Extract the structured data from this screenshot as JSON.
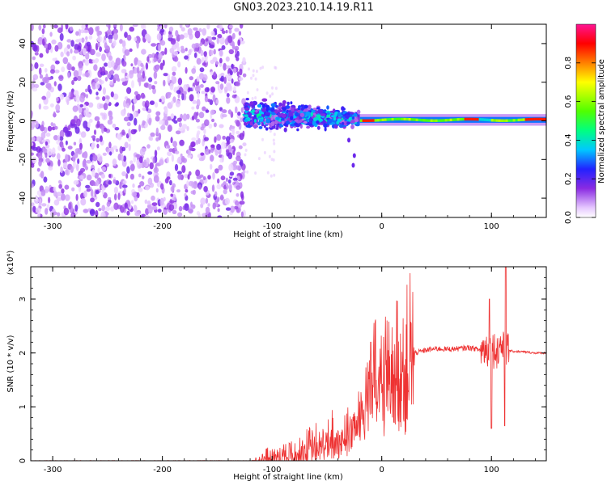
{
  "title": "GN03.2023.210.14.19.R11",
  "chart_data": [
    {
      "type": "heatmap",
      "xlabel": "Height of straight line (km)",
      "ylabel": "Frequency (Hz)",
      "xlim": [
        -320,
        150
      ],
      "ylim": [
        -50,
        50
      ],
      "xticks": [
        -300,
        -200,
        -100,
        0,
        100
      ],
      "yticks": [
        -40,
        -20,
        0,
        20,
        40
      ],
      "colorbar": {
        "label": "Normalized spectral amplitude",
        "range": [
          0,
          1
        ],
        "ticks": [
          "0.0",
          "0.2",
          "0.4",
          "0.6",
          "0.8"
        ],
        "colormap": [
          "#ffffff",
          "#e6c8ff",
          "#8a2be2",
          "#2222ff",
          "#00c8ff",
          "#00ff80",
          "#50ff00",
          "#ffff00",
          "#ff8000",
          "#ff0000",
          "#ff1493"
        ]
      },
      "regions": [
        {
          "x": [
            -320,
            -125
          ],
          "freq": [
            -50,
            50
          ],
          "amplitude": "0.0-0.2, noise"
        },
        {
          "x": [
            -125,
            -20
          ],
          "freq": [
            -5,
            10
          ],
          "amplitude": "0.1-0.5"
        },
        {
          "x": [
            -20,
            150
          ],
          "freq": [
            -1,
            2
          ],
          "amplitude": "0.4-0.9"
        }
      ]
    },
    {
      "type": "line",
      "xlabel": "Height of straight line (km)",
      "ylabel": "SNR (10 * v/v)",
      "ymultiplier": "(x10⁴)",
      "xlim": [
        -320,
        150
      ],
      "ylim": [
        0,
        3.6
      ],
      "xticks": [
        -300,
        -200,
        -100,
        0,
        100
      ],
      "yticks": [
        0,
        1,
        2,
        3
      ],
      "color": "#ee3333",
      "series": [
        {
          "x": [
            -320,
            -200,
            -120,
            -110,
            -100,
            -90,
            -80,
            -70,
            -60,
            -50,
            -40,
            -35,
            -30,
            -25,
            -22,
            -20,
            -18,
            -15,
            -12,
            -10,
            -8,
            -5,
            0,
            5,
            10,
            15,
            20,
            25,
            30,
            40,
            50,
            60,
            70,
            80,
            85,
            90,
            95,
            98,
            100,
            102,
            104,
            106,
            108,
            110,
            112,
            113,
            115,
            120,
            130,
            140,
            150
          ],
          "values": [
            0,
            0,
            0,
            0.02,
            0.06,
            0.1,
            0.15,
            0.2,
            0.28,
            0.35,
            0.4,
            0.5,
            0.6,
            0.65,
            0.8,
            0.9,
            1.1,
            1.3,
            1.5,
            1.6,
            1.55,
            1.5,
            1.55,
            1.65,
            1.75,
            1.8,
            1.85,
            1.95,
            2.0,
            2.05,
            2.08,
            2.07,
            2.08,
            2.1,
            2.08,
            2.05,
            2.1,
            2.0,
            2.15,
            2.05,
            2.1,
            2.0,
            2.2,
            2.1,
            2.0,
            2.05,
            2.05,
            2.03,
            2.02,
            2.0,
            2.0
          ]
        }
      ]
    }
  ]
}
